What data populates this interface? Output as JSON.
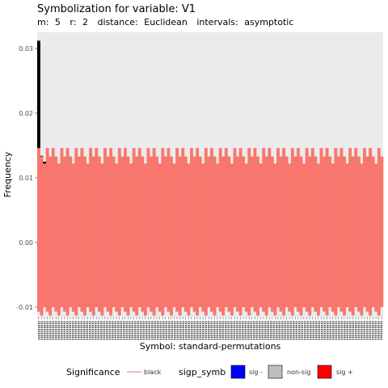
{
  "chart_data": {
    "type": "bar",
    "title": "Symbolization for variable: V1",
    "subtitle_parts": [
      {
        "label": "m:",
        "value": "5"
      },
      {
        "label": "r:",
        "value": "2"
      },
      {
        "label": "distance:",
        "value": "Euclidean"
      },
      {
        "label": "intervals:",
        "value": "asymptotic"
      }
    ],
    "xlabel": "Symbol: standard-permutations",
    "ylabel": "Frequency",
    "ylim": [
      -0.0115,
      0.0325
    ],
    "yticks": [
      0.03,
      0.02,
      0.01,
      0.0,
      -0.01
    ],
    "ytick_labels": [
      "0.03",
      "0.02",
      "0.01",
      "0.00",
      "-0.01"
    ],
    "n_symbols": 120,
    "bar_value": 0.0083,
    "interval_lower": -0.0113,
    "interval_upper": 0.0146,
    "interval_lower_levels": [
      -0.0113,
      -0.0107,
      -0.01
    ],
    "interval_upper_levels": [
      0.0146,
      0.0133,
      0.0122
    ],
    "highlight_symbols": [
      1,
      2,
      3
    ],
    "highlight_values": [
      0.0312,
      0.0134,
      0.0125
    ],
    "grid": false,
    "legend_position": "bottom",
    "colors": {
      "panel": "#ebebeb",
      "band": "#f8766d",
      "highlight": "#000000",
      "sig_minus": "#0000ff",
      "non_sig": "#bebebe",
      "sig_plus": "#ff0000"
    }
  },
  "legend": {
    "significance_title": "Significance",
    "significance_item": "black",
    "sigp_title": "sigp_symb",
    "sigp_items": [
      "sig -",
      "non-sig",
      "sig +"
    ]
  }
}
